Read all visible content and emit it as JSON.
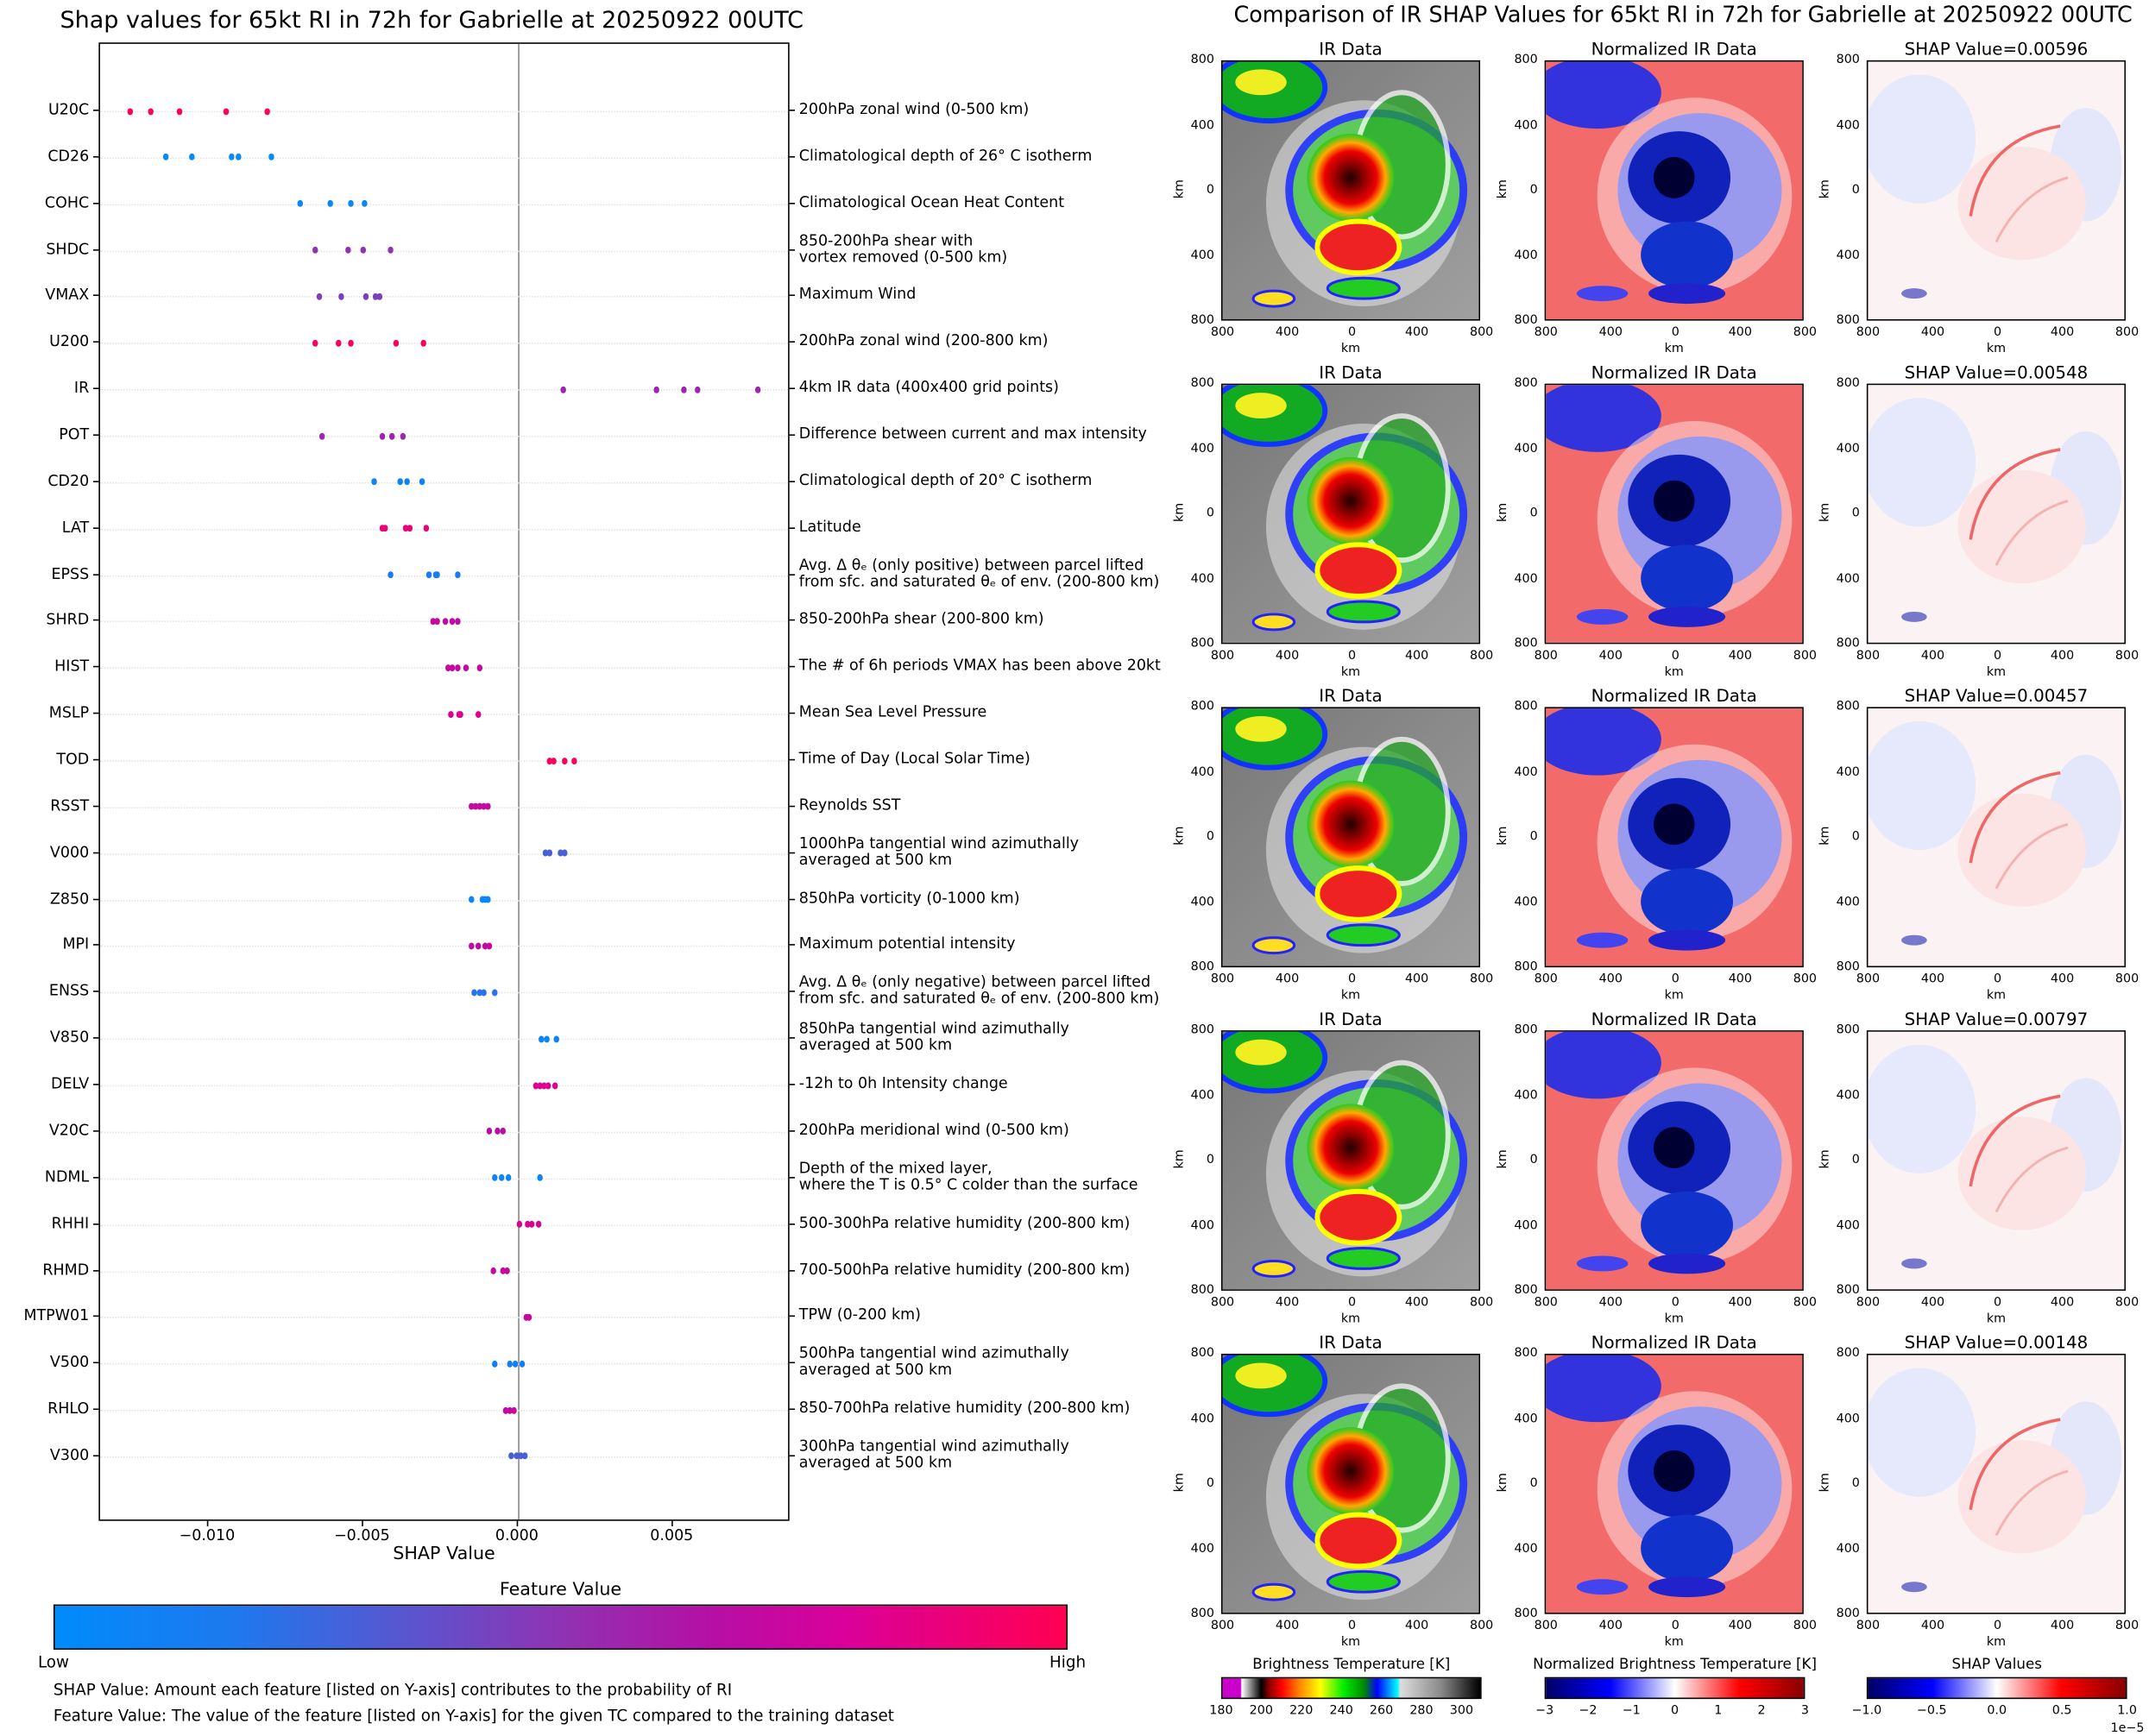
{
  "left": {
    "title": "Shap values for 65kt RI in 72h for Gabrielle at 20250922 00UTC",
    "xlabel": "SHAP Value",
    "colorbar": {
      "title": "Feature Value",
      "low": "Low",
      "high": "High"
    },
    "notes": [
      "SHAP Value: Amount each feature [listed on Y-axis] contributes to the probability of RI",
      "Feature Value: The value of the feature [listed on Y-axis] for the given TC compared to the training dataset"
    ]
  },
  "chart_data": {
    "type": "scatter",
    "title": "Shap values for 65kt RI in 72h for Gabrielle at 20250922 00UTC",
    "xlabel": "SHAP Value",
    "xlim": [
      -0.0135,
      0.0088
    ],
    "xticks": [
      "−0.010",
      "−0.005",
      "0.000",
      "0.005"
    ],
    "xtick_values": [
      -0.01,
      -0.005,
      0,
      0.005
    ],
    "vertical_line_at": 0,
    "grid": "horizontal dotted",
    "colormap": {
      "low": "#008bfb",
      "mid": "#8f33b3",
      "high": "#ff0052"
    },
    "features": [
      {
        "name": "U20C",
        "desc": "200hPa zonal wind (0-500 km)",
        "feature_value": 1.0,
        "shap": [
          -0.01252,
          -0.01186,
          -0.01093,
          -0.00942,
          -0.0081
        ]
      },
      {
        "name": "CD26",
        "desc": "Climatological depth of 26° C isotherm",
        "feature_value": 0.02,
        "shap": [
          -0.01137,
          -0.01053,
          -0.00925,
          -0.00903,
          -0.00796
        ]
      },
      {
        "name": "COHC",
        "desc": "Climatological Ocean Heat Content",
        "feature_value": 0.03,
        "shap": [
          -0.00704,
          -0.00606,
          -0.0054,
          -0.00496
        ]
      },
      {
        "name": "SHDC",
        "desc": "850-200hPa shear with\nvortex removed (0-500 km)",
        "feature_value": 0.5,
        "shap": [
          -0.00655,
          -0.00549,
          -0.005,
          -0.00412
        ]
      },
      {
        "name": "VMAX",
        "desc": "Maximum Wind",
        "feature_value": 0.45,
        "shap": [
          -0.00642,
          -0.00571,
          -0.00491,
          -0.0046,
          -0.00447
        ]
      },
      {
        "name": "U200",
        "desc": "200hPa zonal wind (200-800 km)",
        "feature_value": 0.97,
        "shap": [
          -0.00655,
          -0.0058,
          -0.0054,
          -0.00394,
          -0.00305
        ]
      },
      {
        "name": "IR",
        "desc": "4km IR data (400x400 grid points)",
        "feature_value": 0.55,
        "shap": [
          0.00146,
          0.00447,
          0.00535,
          0.0058,
          0.00774
        ]
      },
      {
        "name": "POT",
        "desc": "Difference between current and max intensity",
        "feature_value": 0.55,
        "shap": [
          -0.00633,
          -0.00438,
          -0.00407,
          -0.00372
        ]
      },
      {
        "name": "CD20",
        "desc": "Climatological depth of 20° C isotherm",
        "feature_value": 0.08,
        "shap": [
          -0.00465,
          -0.00381,
          -0.00358,
          -0.0031
        ]
      },
      {
        "name": "LAT",
        "desc": "Latitude",
        "feature_value": 0.88,
        "shap": [
          -0.00438,
          -0.00429,
          -0.00363,
          -0.0035,
          -0.00296
        ]
      },
      {
        "name": "EPSS",
        "desc": "Avg. Δ θₑ (only positive) between parcel lifted\nfrom sfc. and saturated θₑ of env. (200-800 km)",
        "feature_value": 0.15,
        "shap": [
          -0.00412,
          -0.00288,
          -0.00265,
          -0.00261,
          -0.00195
        ]
      },
      {
        "name": "SHRD",
        "desc": "850-200hPa shear (200-800 km)",
        "feature_value": 0.7,
        "shap": [
          -0.00274,
          -0.00261,
          -0.00235,
          -0.00212,
          -0.00195
        ]
      },
      {
        "name": "HIST",
        "desc": "The # of 6h periods VMAX has been above 20kt",
        "feature_value": 0.7,
        "shap": [
          -0.00226,
          -0.00212,
          -0.00195,
          -0.00168,
          -0.00124
        ]
      },
      {
        "name": "MSLP",
        "desc": "Mean Sea Level Pressure",
        "feature_value": 0.82,
        "shap": [
          -0.00217,
          -0.0019,
          -0.00186,
          -0.00128
        ]
      },
      {
        "name": "TOD",
        "desc": "Time of Day (Local Solar Time)",
        "feature_value": 0.97,
        "shap": [
          0.00102,
          0.00115,
          0.0015,
          0.00181
        ]
      },
      {
        "name": "RSST",
        "desc": "Reynolds SST",
        "feature_value": 0.7,
        "shap": [
          -0.0015,
          -0.00137,
          -0.00124,
          -0.00111,
          -0.00097
        ]
      },
      {
        "name": "V000",
        "desc": "1000hPa tangential wind azimuthally\naveraged at 500 km",
        "feature_value": 0.3,
        "shap": [
          0.00088,
          0.00102,
          0.00137,
          0.0015
        ]
      },
      {
        "name": "Z850",
        "desc": "850hPa vorticity (0-1000 km)",
        "feature_value": 0.05,
        "shap": [
          -0.0015,
          -0.00115,
          -0.00106,
          -0.00097
        ]
      },
      {
        "name": "MPI",
        "desc": "Maximum potential intensity",
        "feature_value": 0.7,
        "shap": [
          -0.0015,
          -0.00128,
          -0.00106,
          -0.00093
        ]
      },
      {
        "name": "ENSS",
        "desc": "Avg. Δ θₑ (only negative) between parcel lifted\nfrom sfc. and saturated θₑ of env. (200-800 km)",
        "feature_value": 0.2,
        "shap": [
          -0.00142,
          -0.00124,
          -0.00111,
          -0.00075
        ]
      },
      {
        "name": "V850",
        "desc": "850hPa tangential wind azimuthally\naveraged at 500 km",
        "feature_value": 0.06,
        "shap": [
          0.00075,
          0.00093,
          0.00124
        ]
      },
      {
        "name": "DELV",
        "desc": "-12h to 0h Intensity change",
        "feature_value": 0.8,
        "shap": [
          0.00058,
          0.00071,
          0.00084,
          0.00097,
          0.00119
        ]
      },
      {
        "name": "V20C",
        "desc": "200hPa meridional wind (0-500 km)",
        "feature_value": 0.65,
        "shap": [
          -0.00093,
          -0.00066,
          -0.00049
        ]
      },
      {
        "name": "NDML",
        "desc": "Depth of the mixed layer,\nwhere the T is 0.5° C colder than the surface",
        "feature_value": 0.05,
        "shap": [
          -0.00075,
          -0.00053,
          -0.00031,
          0.00071
        ]
      },
      {
        "name": "RHHI",
        "desc": "500-300hPa relative humidity (200-800 km)",
        "feature_value": 0.8,
        "shap": [
          4e-05,
          0.00031,
          0.00044,
          0.00066
        ]
      },
      {
        "name": "RHMD",
        "desc": "700-500hPa relative humidity (200-800 km)",
        "feature_value": 0.7,
        "shap": [
          -0.0008,
          -0.00049,
          -0.00035
        ]
      },
      {
        "name": "MTPW01",
        "desc": "TPW (0-200 km)",
        "feature_value": 0.72,
        "shap": [
          0.00027,
          0.00035
        ]
      },
      {
        "name": "V500",
        "desc": "500hPa tangential wind azimuthally\naveraged at 500 km",
        "feature_value": 0.1,
        "shap": [
          -0.00075,
          -0.00027,
          -9e-05,
          0.00013
        ]
      },
      {
        "name": "RHLO",
        "desc": "850-700hPa relative humidity (200-800 km)",
        "feature_value": 0.7,
        "shap": [
          -0.0004,
          -0.00027,
          -0.00013
        ]
      },
      {
        "name": "V300",
        "desc": "300hPa tangential wind azimuthally\naveraged at 500 km",
        "feature_value": 0.3,
        "shap": [
          -0.00022,
          -4e-05,
          9e-05,
          0.00022
        ]
      }
    ]
  },
  "right": {
    "title": "Comparison of IR SHAP Values for 65kt RI in 72h for Gabrielle at 20250922 00UTC",
    "col_titles": [
      "IR Data",
      "Normalized IR Data"
    ],
    "shap_titles": [
      "SHAP Value=0.00596",
      "SHAP Value=0.00548",
      "SHAP Value=0.00457",
      "SHAP Value=0.00797",
      "SHAP Value=0.00148"
    ],
    "ticks": [
      "800",
      "400",
      "0",
      "400",
      "800"
    ],
    "axis_label": "km",
    "colorbars": [
      {
        "title": "Brightness Temperature [K]",
        "ticks": [
          "180",
          "200",
          "220",
          "240",
          "260",
          "280",
          "300"
        ]
      },
      {
        "title": "Normalized Brightness Temperature [K]",
        "ticks": [
          "−3",
          "−2",
          "−1",
          "0",
          "1",
          "2",
          "3"
        ]
      },
      {
        "title": "SHAP Values",
        "ticks": [
          "−1.0",
          "−0.5",
          "0.0",
          "0.5",
          "1.0"
        ],
        "offset": "1e−5"
      }
    ]
  }
}
